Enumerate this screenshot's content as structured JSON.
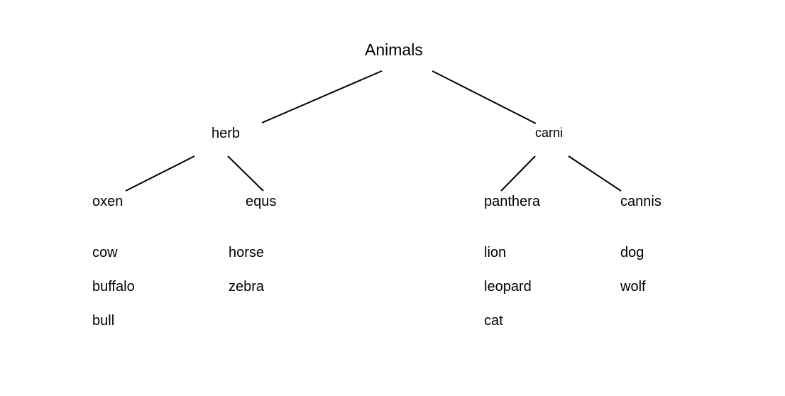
{
  "tree": {
    "root": "Animals",
    "branches": [
      {
        "label": "herb",
        "groups": [
          {
            "label": "oxen",
            "members": [
              "cow",
              "buffalo",
              "bull"
            ]
          },
          {
            "label": "equs",
            "members": [
              "horse",
              "zebra"
            ]
          }
        ]
      },
      {
        "label": "carni",
        "groups": [
          {
            "label": "panthera",
            "members": [
              "lion",
              "leopard",
              "cat"
            ]
          },
          {
            "label": "cannis",
            "members": [
              "dog",
              "wolf"
            ]
          }
        ]
      }
    ]
  }
}
